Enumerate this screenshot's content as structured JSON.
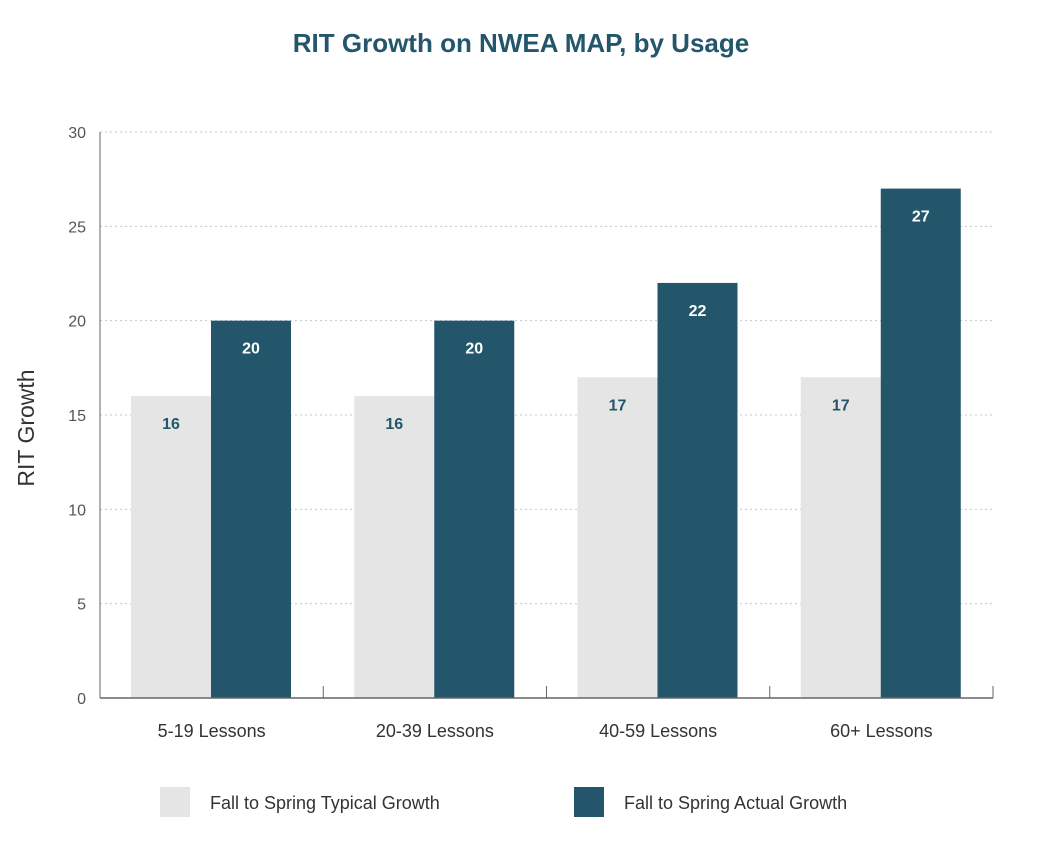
{
  "chart_data": {
    "type": "bar",
    "title": "RIT Growth on NWEA MAP, by Usage",
    "xlabel": "",
    "ylabel": "RIT Growth",
    "ylim": [
      0,
      30
    ],
    "yticks": [
      0,
      5,
      10,
      15,
      20,
      25,
      30
    ],
    "categories": [
      "5-19 Lessons",
      "20-39 Lessons",
      "40-59 Lessons",
      "60+ Lessons"
    ],
    "series": [
      {
        "name": "Fall to Spring Typical Growth",
        "values": [
          16,
          16,
          17,
          17
        ],
        "color": "#e5e5e5",
        "label_color": "#24566b"
      },
      {
        "name": "Fall to Spring Actual Growth",
        "values": [
          20,
          20,
          22,
          27
        ],
        "color": "#24566b",
        "label_color": "#ffffff"
      }
    ],
    "grid": "horizontal-dotted",
    "legend_position": "bottom",
    "data_labels": true
  }
}
